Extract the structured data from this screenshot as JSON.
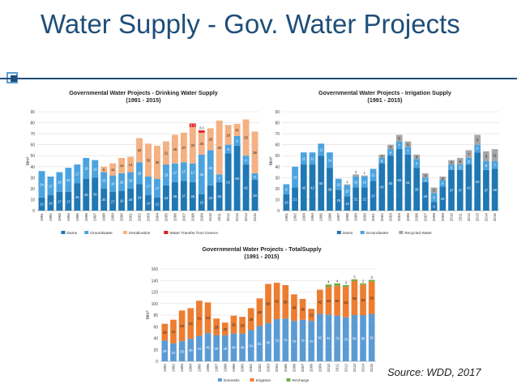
{
  "slide": {
    "title": "Water Supply - Gov. Water Projects",
    "source": "Source: WDD, 2017",
    "accent_color": "#1f4e79",
    "icon": "square-bullet-icon"
  },
  "chart_data": [
    {
      "type": "bar",
      "stacked": true,
      "title": "Governmental Water Projects - Drinking Water Supply",
      "subtitle": "(1991 - 2015)",
      "ylabel": "Mm³",
      "ylim": [
        0,
        90
      ],
      "yticks": [
        0,
        10,
        20,
        30,
        40,
        50,
        60,
        70,
        80,
        90
      ],
      "legend_position": "bottom",
      "categories": [
        "1991",
        "1992",
        "1993",
        "1994",
        "1995",
        "1996",
        "1997",
        "1998",
        "1999",
        "2000",
        "2001",
        "2002",
        "2003",
        "2004",
        "2005",
        "2006",
        "2007",
        "2008",
        "2009",
        "2010",
        "2011",
        "2012",
        "2013",
        "2014",
        "2015"
      ],
      "series": [
        {
          "name": "Dams",
          "color": "#1f77b4",
          "values": [
            12,
            14,
            17,
            17,
            25,
            29,
            30,
            20,
            17,
            18,
            20,
            24,
            14,
            12,
            23,
            26,
            27,
            26,
            15,
            23,
            26,
            52,
            59,
            42,
            28
          ]
        },
        {
          "name": "Groundwater",
          "color": "#4aa3df",
          "values": [
            24,
            17,
            18,
            22,
            17,
            19,
            16,
            15,
            15,
            16,
            15,
            20,
            17,
            17,
            19,
            17,
            17,
            17,
            36,
            32,
            7,
            8,
            9,
            8,
            6
          ]
        },
        {
          "name": "Desalination",
          "color": "#f4b183",
          "values": [
            0,
            0,
            0,
            0,
            0,
            0,
            0,
            5,
            11,
            14,
            14,
            22,
            30,
            30,
            21,
            26,
            27,
            33,
            20,
            20,
            49,
            18,
            11,
            33,
            38
          ]
        },
        {
          "name": "Water Transfer from Greece",
          "color": "#e31a1c",
          "values": [
            0,
            0,
            0,
            0,
            0,
            0,
            0,
            0,
            0,
            0,
            0,
            0,
            0,
            0,
            0,
            0,
            0,
            3.3,
            2,
            0,
            0,
            0,
            0,
            0,
            0
          ]
        }
      ],
      "data_labels": {
        "Dams": [
          "12",
          "14",
          "17",
          "17",
          "25",
          "29",
          "30",
          "20",
          "17",
          "18",
          "20",
          "24",
          "14",
          "12",
          "23",
          "26",
          "27",
          "26",
          "15",
          "23",
          "26",
          "52",
          "59",
          "42",
          "28"
        ],
        "Groundwater": [
          "24",
          "17",
          "18",
          "22",
          "17",
          "19",
          "16",
          "15",
          "15",
          "16",
          "15",
          "20",
          "17",
          "17",
          "19",
          "17",
          "17",
          "17",
          "36",
          "32",
          "7",
          "8",
          "9",
          "8",
          "6"
        ],
        "Desalination": [
          "",
          "",
          "",
          "",
          "",
          "",
          "",
          "5",
          "11",
          "14",
          "14",
          "22",
          "30",
          "30",
          "21",
          "26",
          "27",
          "33",
          "20",
          "20",
          "49",
          "18",
          "11",
          "33",
          "38"
        ],
        "Water Transfer from Greece": [
          "",
          "",
          "",
          "",
          "",
          "",
          "",
          "",
          "",
          "",
          "",
          "",
          "",
          "",
          "",
          "",
          "",
          "3.3",
          "2.0",
          "",
          "",
          "",
          "",
          "",
          ""
        ]
      }
    },
    {
      "type": "bar",
      "stacked": true,
      "title": "Governmental Water Projects - Irrigation Supply",
      "subtitle": "(1991 - 2015)",
      "ylabel": "Mm³",
      "ylim": [
        0,
        90
      ],
      "yticks": [
        0,
        10,
        20,
        30,
        40,
        50,
        60,
        70,
        80,
        90
      ],
      "legend_position": "bottom",
      "categories": [
        "1991",
        "1992",
        "1993",
        "1994",
        "1995",
        "1996",
        "1997",
        "1998",
        "1999",
        "2000",
        "2001",
        "2002",
        "2003",
        "2004",
        "2005",
        "2006",
        "2007",
        "2008",
        "2009",
        "2010",
        "2011",
        "2012",
        "2013",
        "2014",
        "2015"
      ],
      "series": [
        {
          "name": "Dams",
          "color": "#1f77b4",
          "values": [
            15,
            21,
            42,
            42,
            50,
            39,
            19,
            13,
            21,
            21,
            27,
            43,
            50,
            56,
            51,
            39,
            26,
            8,
            22,
            37,
            37,
            42,
            53,
            37,
            38
          ]
        },
        {
          "name": "Groundwater",
          "color": "#4aa3df",
          "values": [
            9,
            19,
            11,
            11,
            11,
            14,
            10,
            10,
            10,
            10,
            11,
            5,
            6,
            7,
            7,
            8,
            4,
            8,
            6,
            5,
            5,
            6,
            7,
            8,
            7
          ]
        },
        {
          "name": "Recycled Water",
          "color": "#a6a6a6",
          "values": [
            0,
            0,
            0,
            0,
            0,
            0,
            0,
            1,
            2,
            1,
            0,
            3,
            4,
            6,
            5,
            4,
            4,
            5,
            3,
            4,
            6,
            7,
            9,
            9,
            11
          ]
        }
      ],
      "data_labels": {
        "Dams": [
          "15",
          "21",
          "42",
          "42",
          "50",
          "39",
          "19",
          "13",
          "21",
          "21",
          "27",
          "43",
          "50",
          "56",
          "51",
          "39",
          "26",
          "8",
          "22",
          "37",
          "37",
          "42",
          "53",
          "37",
          "38"
        ],
        "Groundwater": [
          "9",
          "19",
          "11",
          "11",
          "11",
          "14",
          "10",
          "10",
          "10",
          "10",
          "11",
          "5",
          "6",
          "7",
          "7",
          "8",
          "4",
          "8",
          "6",
          "5",
          "5",
          "6",
          "7",
          "8",
          "7"
        ],
        "Recycled Water": [
          "",
          "",
          "",
          "",
          "",
          "",
          "",
          "1",
          "2",
          "1",
          "",
          "3",
          "4",
          "6",
          "5",
          "4",
          "4",
          "5",
          "3",
          "4",
          "6",
          "7",
          "9",
          "9",
          "11"
        ]
      }
    },
    {
      "type": "bar",
      "stacked": true,
      "title": "Governmental Water Projects - TotalSupply",
      "subtitle": "(1991 - 2015)",
      "ylabel": "Mm³",
      "ylim": [
        0,
        160
      ],
      "yticks": [
        0,
        20,
        40,
        60,
        80,
        100,
        120,
        140,
        160
      ],
      "legend_position": "bottom",
      "categories": [
        "1991",
        "1992",
        "1993",
        "1994",
        "1995",
        "1996",
        "1997",
        "1998",
        "1999",
        "2000",
        "2001",
        "2002",
        "2003",
        "2004",
        "2005",
        "2006",
        "2007",
        "2008",
        "2009",
        "2010",
        "2011",
        "2012",
        "2013",
        "2014",
        "2015"
      ],
      "series": [
        {
          "name": "Domestic",
          "color": "#5b9bd5",
          "values": [
            36,
            31,
            35,
            39,
            44,
            49,
            45,
            45,
            48,
            48,
            54,
            61,
            66,
            73,
            74,
            70,
            72,
            70,
            82,
            81,
            79,
            76,
            80,
            80,
            82
          ]
        },
        {
          "name": "Irrigation",
          "color": "#ed7d31",
          "values": [
            29,
            41,
            53,
            53,
            61,
            53,
            29,
            22,
            31,
            29,
            38,
            48,
            68,
            63,
            58,
            46,
            36,
            21,
            42,
            48,
            52,
            53,
            59,
            53,
            56
          ]
        },
        {
          "name": "Recharge",
          "color": "#70ad47",
          "values": [
            0,
            0,
            0,
            0,
            0,
            0,
            0,
            0,
            0,
            0,
            0,
            0,
            0,
            0,
            0,
            0,
            0,
            0,
            0,
            4,
            4,
            3,
            3,
            2,
            3
          ]
        }
      ],
      "data_labels": {
        "Domestic": [
          "36",
          "31",
          "35",
          "39",
          "44",
          "49",
          "45",
          "45",
          "48",
          "48",
          "54",
          "61",
          "66",
          "73",
          "74",
          "70",
          "72",
          "70",
          "82",
          "81",
          "79",
          "76",
          "80",
          "80",
          "82"
        ],
        "Irrigation": [
          "29",
          "41",
          "53",
          "53",
          "61",
          "53",
          "29",
          "22",
          "31",
          "29",
          "38",
          "48",
          "68",
          "63",
          "58",
          "46",
          "36",
          "21",
          "42",
          "48",
          "52",
          "53",
          "59",
          "53",
          "56"
        ],
        "Recharge": [
          "",
          "",
          "",
          "",
          "",
          "",
          "",
          "",
          "",
          "",
          "",
          "",
          "",
          "",
          "",
          "",
          "",
          "",
          "",
          "4",
          "4",
          "3",
          "3",
          "2",
          "3"
        ]
      }
    }
  ]
}
